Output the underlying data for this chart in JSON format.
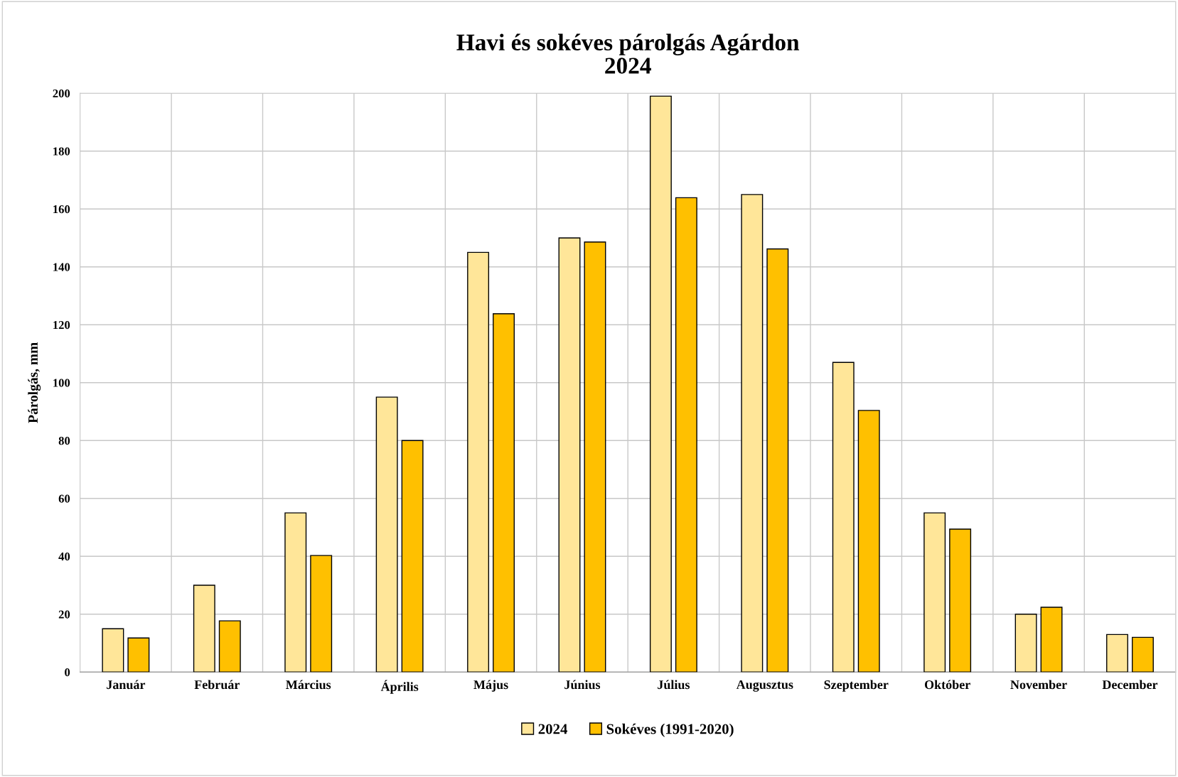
{
  "chart_data": {
    "type": "bar",
    "title": "Havi és sokéves párolgás Agárdon\n2024",
    "ylabel": "Párolgás, mm",
    "categories": [
      "Január",
      "Február",
      "Március",
      "Április",
      "Május",
      "Június",
      "Július",
      "Augusztus",
      "Szeptember",
      "Október",
      "November",
      "December"
    ],
    "series": [
      {
        "name": "2024",
        "color": "#ffe699",
        "values": [
          15,
          30,
          55,
          95,
          145,
          150,
          199,
          165,
          107,
          55,
          20,
          13
        ]
      },
      {
        "name": "Sokéves (1991-2020)",
        "color": "#ffc000",
        "values": [
          11.8,
          17.7,
          40.3,
          80,
          123.8,
          148.6,
          163.9,
          146.2,
          90.4,
          49.4,
          22.4,
          12
        ]
      }
    ],
    "ylim": [
      0,
      200
    ],
    "yticks": [
      0,
      20,
      40,
      60,
      80,
      100,
      120,
      140,
      160,
      180,
      200
    ],
    "grid": true,
    "legend": "bottom"
  }
}
